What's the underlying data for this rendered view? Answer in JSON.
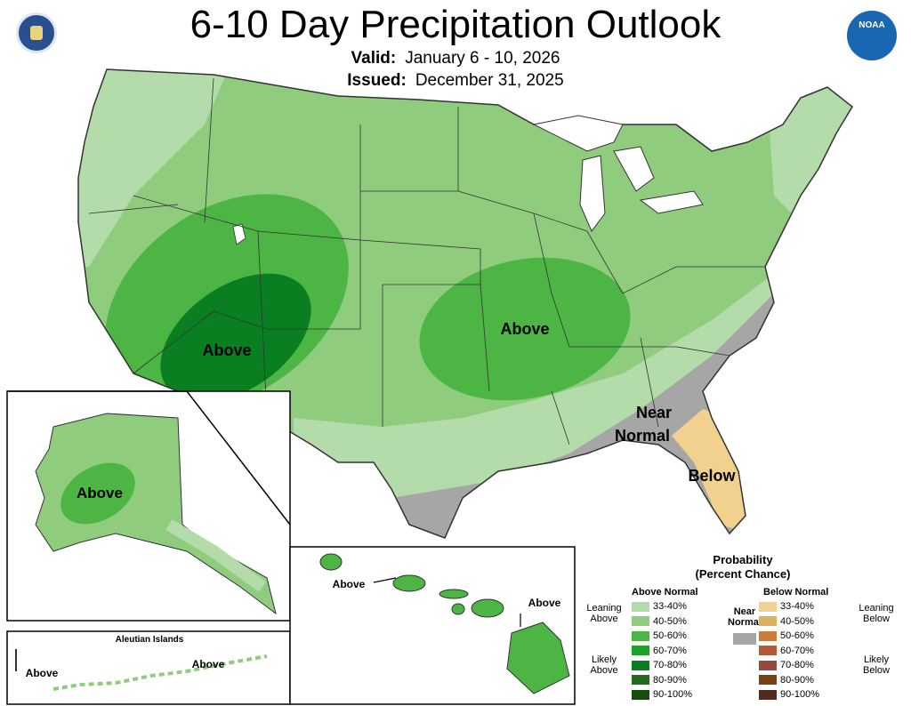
{
  "header": {
    "title": "6-10 Day Precipitation Outlook",
    "valid_label": "Valid:",
    "valid_value": "January 6 - 10, 2026",
    "issued_label": "Issued:",
    "issued_value": "December 31, 2025"
  },
  "logos": {
    "left": "seal-icon",
    "right": "noaa-logo-icon",
    "noaa_text": "NOAA"
  },
  "map_labels": {
    "southwest": "Above",
    "central": "Above",
    "near_normal_1": "Near",
    "near_normal_2": "Normal",
    "florida": "Below",
    "alaska": "Above",
    "hawaii_west": "Above",
    "hawaii_east": "Above",
    "aleutian_title": "Aleutian Islands",
    "aleutian_west": "Above",
    "aleutian_east": "Above"
  },
  "legend": {
    "title_1": "Probability",
    "title_2": "(Percent Chance)",
    "above_head": "Above Normal",
    "below_head": "Below Normal",
    "near_1": "Near",
    "near_2": "Normal",
    "leaning_above_1": "Leaning",
    "leaning_above_2": "Above",
    "likely_above_1": "Likely",
    "likely_above_2": "Above",
    "leaning_below_1": "Leaning",
    "leaning_below_2": "Below",
    "likely_below_1": "Likely",
    "likely_below_2": "Below",
    "ranges": [
      "33-40%",
      "40-50%",
      "50-60%",
      "60-70%",
      "70-80%",
      "80-90%",
      "90-100%"
    ],
    "above_colors": [
      "#b3dcaa",
      "#8fcc7e",
      "#4db544",
      "#1fa12b",
      "#0a7f22",
      "#236b1e",
      "#1b4d12"
    ],
    "below_colors": [
      "#f2d08e",
      "#ddb060",
      "#c97b3a",
      "#b25b3c",
      "#954a3d",
      "#7a3f13",
      "#4d2a22"
    ],
    "near_color": "#a6a6a6"
  }
}
